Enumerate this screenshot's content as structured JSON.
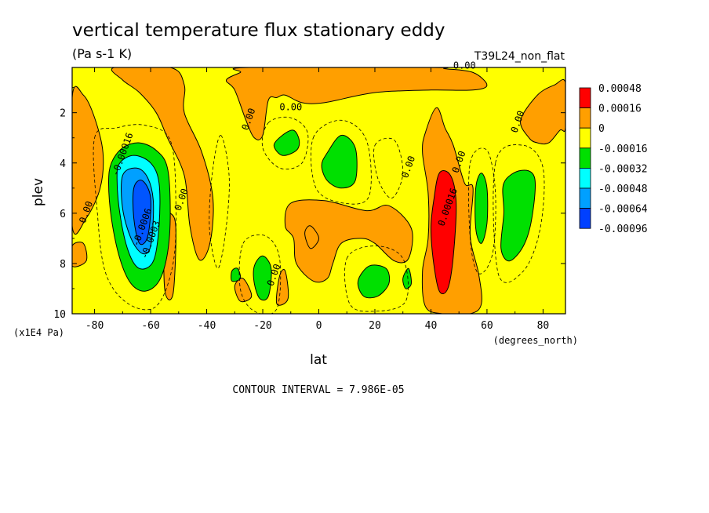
{
  "chart_data": {
    "type": "heatmap",
    "title": "vertical temperature flux stationary eddy",
    "units": "(Pa s-1 K)",
    "dataset": "T39L24_non_flat",
    "xlabel": "lat",
    "xunits": "(degrees_north)",
    "ylabel": "plev",
    "yunits": "(x1E4 Pa)",
    "xlim": [
      -88,
      88
    ],
    "ylim": [
      10,
      0.2
    ],
    "x_ticks": [
      "-80",
      "-60",
      "-40",
      "-20",
      "0",
      "20",
      "40",
      "60",
      "80"
    ],
    "y_ticks": [
      "2",
      "4",
      "6",
      "8",
      "10"
    ],
    "contour_interval": "CONTOUR INTERVAL = 7.986E-05",
    "legend": {
      "placement": "right",
      "entries": [
        {
          "label": "0.00048",
          "color": "#ff0000"
        },
        {
          "label": "0.00016",
          "color": "#ff9f00"
        },
        {
          "label": "0",
          "color": "#ffff00"
        },
        {
          "label": "-0.00016",
          "color": "#00e000"
        },
        {
          "label": "-0.00032",
          "color": "#00ffff"
        },
        {
          "label": "-0.00048",
          "color": "#00a0ff"
        },
        {
          "label": "-0.00064",
          "color": "#0055ff"
        },
        {
          "label": "-0.00096",
          "color": ""
        }
      ]
    },
    "contour_labels": [
      {
        "text": "0.00",
        "x": 52,
        "y": 0.25
      },
      {
        "text": "0.00",
        "x": -10,
        "y": 1.9
      },
      {
        "text": "0.00",
        "x": -24,
        "y": 2.3
      },
      {
        "text": "0.00",
        "x": 72,
        "y": 2.4
      },
      {
        "text": "-0.00016",
        "x": -69,
        "y": 3.7
      },
      {
        "text": "0.00",
        "x": 33,
        "y": 4.2
      },
      {
        "text": "0.00",
        "x": 51,
        "y": 4.0
      },
      {
        "text": "0.00",
        "x": -48,
        "y": 5.5
      },
      {
        "text": "0.00",
        "x": -82,
        "y": 6.0
      },
      {
        "text": "0.00016",
        "x": 47,
        "y": 5.8
      },
      {
        "text": "-0.0006",
        "x": -62,
        "y": 6.6
      },
      {
        "text": "-0.0003",
        "x": -59,
        "y": 7.1
      },
      {
        "text": "0.00",
        "x": -15,
        "y": 8.5
      }
    ],
    "regions": [
      {
        "level": "0.00016",
        "color": "#ff9f00",
        "points": [
          [
            -88,
            1.4
          ],
          [
            -84,
            1.3
          ],
          [
            -80,
            2.2
          ],
          [
            -77,
            3.6
          ],
          [
            -78,
            5
          ],
          [
            -83,
            6.2
          ],
          [
            -88,
            6.5
          ]
        ]
      },
      {
        "level": "0.00016",
        "color": "#ff9f00",
        "points": [
          [
            -88,
            7.3
          ],
          [
            -84,
            7.2
          ],
          [
            -83,
            7.9
          ],
          [
            -88,
            8.1
          ]
        ]
      },
      {
        "level": "0.00016",
        "color": "#ff9f00",
        "points": [
          [
            -73,
            0.2
          ],
          [
            -53,
            0.2
          ],
          [
            -48,
            0.9
          ],
          [
            -48,
            2.0
          ],
          [
            -42,
            3.5
          ],
          [
            -38,
            5.2
          ],
          [
            -38,
            6.6
          ],
          [
            -40,
            7.6
          ],
          [
            -43,
            7.8
          ],
          [
            -46,
            6.5
          ],
          [
            -48,
            4.5
          ],
          [
            -54,
            3.0
          ],
          [
            -58,
            2.0
          ],
          [
            -64,
            1.2
          ],
          [
            -70,
            0.7
          ]
        ]
      },
      {
        "level": "0.00016",
        "color": "#ff9f00",
        "points": [
          [
            -25,
            0.2
          ],
          [
            40,
            0.2
          ],
          [
            45,
            0.25
          ],
          [
            55,
            0.4
          ],
          [
            60,
            0.9
          ],
          [
            55,
            1.1
          ],
          [
            40,
            1.1
          ],
          [
            20,
            1.2
          ],
          [
            2,
            1.6
          ],
          [
            -6,
            1.6
          ],
          [
            -12,
            1.3
          ],
          [
            -15,
            1.4
          ],
          [
            -18,
            1.5
          ],
          [
            -20,
            2.9
          ],
          [
            -23,
            3.0
          ],
          [
            -26,
            2.3
          ],
          [
            -30,
            1.1
          ],
          [
            -33,
            0.7
          ],
          [
            -28,
            0.4
          ]
        ]
      },
      {
        "level": "0.00016",
        "color": "#ff9f00",
        "points": [
          [
            -10,
            5.6
          ],
          [
            2,
            5.5
          ],
          [
            17,
            5.9
          ],
          [
            25,
            5.7
          ],
          [
            33,
            6.6
          ],
          [
            32,
            7.8
          ],
          [
            27,
            7.9
          ],
          [
            20,
            7.2
          ],
          [
            15,
            7.0
          ],
          [
            8,
            7.2
          ],
          [
            5,
            8.0
          ],
          [
            3,
            8.6
          ],
          [
            -2,
            8.7
          ],
          [
            -8,
            8.0
          ],
          [
            -9,
            7.0
          ],
          [
            -12,
            6.5
          ]
        ]
      },
      {
        "level": "0.00016",
        "color": "#ff9f00",
        "points": [
          [
            -5,
            6.8
          ],
          [
            -3,
            6.5
          ],
          [
            0,
            7.0
          ],
          [
            -3,
            7.4
          ]
        ]
      },
      {
        "level": "0.00016",
        "color": "#ff9f00",
        "points": [
          [
            38,
            2.8
          ],
          [
            42,
            1.8
          ],
          [
            45,
            2.6
          ],
          [
            48,
            3.3
          ],
          [
            52,
            4.8
          ],
          [
            55,
            5.0
          ],
          [
            54,
            6.9
          ],
          [
            57,
            8.4
          ],
          [
            58,
            9.6
          ],
          [
            54,
            10
          ],
          [
            44,
            10
          ],
          [
            38,
            9.7
          ],
          [
            37,
            8.3
          ],
          [
            39,
            7.0
          ],
          [
            39,
            5.2
          ],
          [
            37,
            3.6
          ]
        ]
      },
      {
        "level": "0.00016",
        "color": "#ff9f00",
        "points": [
          [
            72,
            2.3
          ],
          [
            78,
            1.3
          ],
          [
            84,
            0.9
          ],
          [
            88,
            0.8
          ],
          [
            88,
            2.6
          ],
          [
            86,
            2.7
          ],
          [
            82,
            3.2
          ],
          [
            78,
            3.2
          ],
          [
            75,
            3.0
          ]
        ]
      },
      {
        "level": "0.00016",
        "color": "#ff9f00",
        "points": [
          [
            -65,
            6.9
          ],
          [
            -63,
            6.7
          ],
          [
            -62,
            7.8
          ],
          [
            -64,
            8.6
          ],
          [
            -66,
            8.3
          ]
        ]
      },
      {
        "level": "0.00016",
        "color": "#ff9f00",
        "points": [
          [
            -55,
            6.2
          ],
          [
            -53,
            6.0
          ],
          [
            -51,
            6.6
          ],
          [
            -52,
            9.2
          ],
          [
            -55,
            9.0
          ]
        ]
      },
      {
        "level": "0.00016",
        "color": "#ff9f00",
        "points": [
          [
            -30,
            8.9
          ],
          [
            -27,
            8.6
          ],
          [
            -24,
            9.3
          ],
          [
            -28,
            9.5
          ]
        ]
      },
      {
        "level": "0.00016",
        "color": "#ff9f00",
        "points": [
          [
            -14,
            8.5
          ],
          [
            -12,
            8.3
          ],
          [
            -11,
            9.4
          ],
          [
            -15,
            9.6
          ]
        ]
      },
      {
        "level": "0.00048",
        "color": "#ff0000",
        "points": [
          [
            41,
            5.5
          ],
          [
            43,
            4.4
          ],
          [
            47,
            4.5
          ],
          [
            49,
            5.6
          ],
          [
            48,
            7.7
          ],
          [
            46,
            9.0
          ],
          [
            43,
            9.1
          ],
          [
            41,
            8.0
          ],
          [
            40,
            6.6
          ]
        ]
      },
      {
        "level": "-0.00016",
        "color": "#00e000",
        "points": [
          [
            -74,
            4.0
          ],
          [
            -70,
            3.4
          ],
          [
            -64,
            3.2
          ],
          [
            -58,
            3.5
          ],
          [
            -54,
            4.2
          ],
          [
            -53,
            6.0
          ],
          [
            -54,
            7.6
          ],
          [
            -57,
            8.7
          ],
          [
            -62,
            9.1
          ],
          [
            -67,
            8.8
          ],
          [
            -71,
            7.8
          ],
          [
            -74,
            6.2
          ],
          [
            -75,
            4.8
          ]
        ]
      },
      {
        "level": "-0.00032",
        "color": "#00ffff",
        "points": [
          [
            -71,
            4.0
          ],
          [
            -66,
            3.7
          ],
          [
            -60,
            4.0
          ],
          [
            -57,
            4.8
          ],
          [
            -57,
            6.5
          ],
          [
            -59,
            7.9
          ],
          [
            -64,
            8.2
          ],
          [
            -68,
            7.5
          ],
          [
            -71,
            6.0
          ],
          [
            -72,
            4.6
          ]
        ]
      },
      {
        "level": "-0.00048",
        "color": "#00a0ff",
        "points": [
          [
            -70,
            4.5
          ],
          [
            -65,
            4.2
          ],
          [
            -61,
            4.6
          ],
          [
            -59,
            5.6
          ],
          [
            -60,
            7.3
          ],
          [
            -63,
            7.6
          ],
          [
            -67,
            7.0
          ],
          [
            -70,
            5.8
          ]
        ]
      },
      {
        "level": "-0.00064",
        "color": "#0055ff",
        "points": [
          [
            -66,
            5.0
          ],
          [
            -63,
            4.7
          ],
          [
            -60,
            5.4
          ],
          [
            -61,
            6.9
          ],
          [
            -64,
            7.2
          ],
          [
            -66,
            6.2
          ]
        ]
      },
      {
        "level": "-0.00016",
        "color": "#00e000",
        "points": [
          [
            -16,
            3.3
          ],
          [
            -13,
            2.9
          ],
          [
            -9,
            2.7
          ],
          [
            -7,
            3.1
          ],
          [
            -8,
            3.5
          ],
          [
            -13,
            3.7
          ]
        ]
      },
      {
        "level": "-0.00016",
        "color": "#00e000",
        "points": [
          [
            3,
            3.6
          ],
          [
            8,
            2.9
          ],
          [
            13,
            3.4
          ],
          [
            13,
            4.7
          ],
          [
            8,
            5.0
          ],
          [
            3,
            4.7
          ],
          [
            1,
            4.1
          ]
        ]
      },
      {
        "level": "-0.00016",
        "color": "#00e000",
        "points": [
          [
            56,
            5.0
          ],
          [
            58,
            4.4
          ],
          [
            60,
            5.0
          ],
          [
            60,
            6.4
          ],
          [
            58,
            7.2
          ],
          [
            56,
            6.6
          ]
        ]
      },
      {
        "level": "-0.00016",
        "color": "#00e000",
        "points": [
          [
            66,
            4.8
          ],
          [
            72,
            4.3
          ],
          [
            77,
            4.6
          ],
          [
            76,
            6.2
          ],
          [
            73,
            7.3
          ],
          [
            68,
            7.9
          ],
          [
            65,
            7.4
          ],
          [
            66,
            6.0
          ]
        ]
      },
      {
        "level": "-0.00016",
        "color": "#00e000",
        "points": [
          [
            -23,
            8.1
          ],
          [
            -20,
            7.7
          ],
          [
            -17,
            8.2
          ],
          [
            -18,
            9.3
          ],
          [
            -21,
            9.4
          ],
          [
            -23,
            8.8
          ]
        ]
      },
      {
        "level": "-0.00016",
        "color": "#00e000",
        "points": [
          [
            -31,
            8.3
          ],
          [
            -29,
            8.2
          ],
          [
            -28,
            8.6
          ],
          [
            -31,
            8.7
          ]
        ]
      },
      {
        "level": "-0.00016",
        "color": "#00e000",
        "points": [
          [
            14,
            8.7
          ],
          [
            18,
            8.1
          ],
          [
            24,
            8.2
          ],
          [
            25,
            8.8
          ],
          [
            21,
            9.3
          ],
          [
            16,
            9.3
          ]
        ]
      },
      {
        "level": "-0.00016",
        "color": "#00e000",
        "points": [
          [
            30,
            8.6
          ],
          [
            32,
            8.2
          ],
          [
            33,
            8.8
          ],
          [
            31,
            9.0
          ]
        ]
      }
    ]
  }
}
